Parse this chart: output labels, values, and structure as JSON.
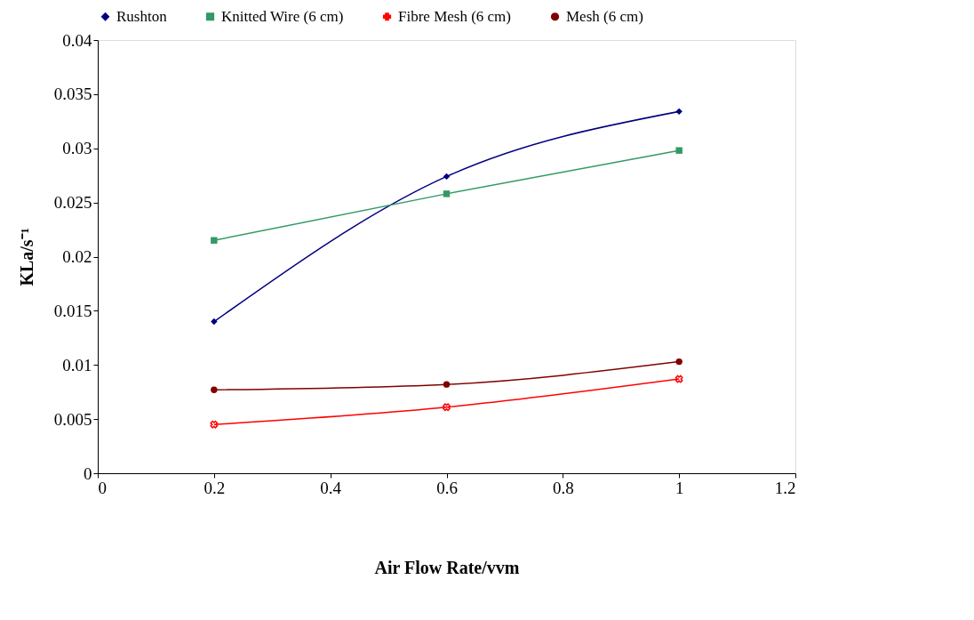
{
  "chart_data": {
    "type": "line",
    "xlabel": "Air Flow Rate/vvm",
    "ylabel": "KLa/s⁻¹",
    "x": [
      0.2,
      0.6,
      1
    ],
    "series": [
      {
        "name": "Rushton",
        "color": "#000080",
        "marker": "diamond",
        "values": [
          0.014,
          0.0274,
          0.0334
        ]
      },
      {
        "name": "Knitted Wire (6 cm)",
        "color": "#339966",
        "marker": "square",
        "values": [
          0.0215,
          0.0258,
          0.0298
        ]
      },
      {
        "name": "Fibre Mesh (6 cm)",
        "color": "#ff0000",
        "marker": "cross",
        "values": [
          0.0045,
          0.0061,
          0.0087
        ]
      },
      {
        "name": "Mesh (6 cm)",
        "color": "#800000",
        "marker": "circle",
        "values": [
          0.0077,
          0.0082,
          0.0103
        ]
      }
    ],
    "xlim": [
      0,
      1.2
    ],
    "xticks": [
      0,
      0.2,
      0.4,
      0.6,
      0.8,
      1,
      1.2
    ],
    "ylim": [
      0,
      0.04
    ],
    "yticks": [
      0,
      0.005,
      0.01,
      0.015,
      0.02,
      0.025,
      0.03,
      0.035,
      0.04
    ],
    "grid": false,
    "legend": "top",
    "line_style": "solid"
  }
}
